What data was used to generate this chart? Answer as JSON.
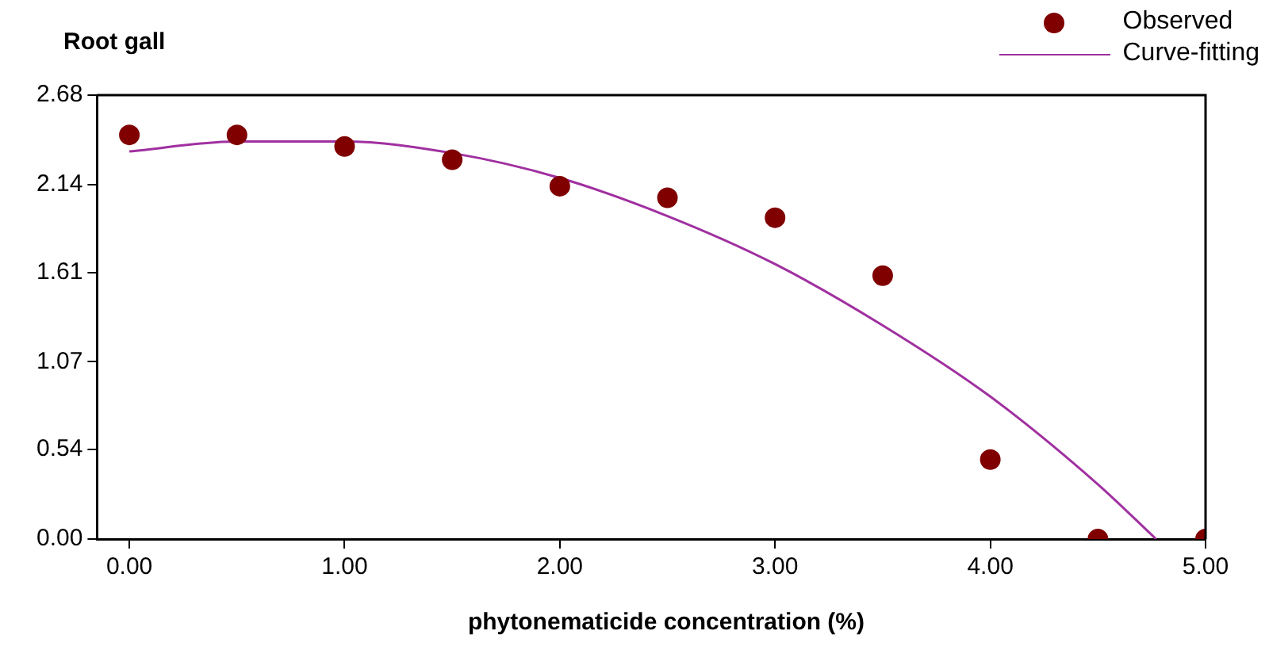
{
  "chart_data": {
    "type": "scatter",
    "ylabel": "Root gall",
    "xlabel": "phytonematicide concentration (%)",
    "xlim": [
      -0.15,
      5
    ],
    "xticks": [
      {
        "value": 0,
        "label": "0.00"
      },
      {
        "value": 1,
        "label": "1.00"
      },
      {
        "value": 2,
        "label": "2.00"
      },
      {
        "value": 3,
        "label": "3.00"
      },
      {
        "value": 4,
        "label": "4.00"
      },
      {
        "value": 5,
        "label": "5.00"
      }
    ],
    "ylim": [
      0,
      2.68
    ],
    "yticks": [
      {
        "value": 0,
        "label": "0.00"
      },
      {
        "value": 0.54,
        "label": "0.54"
      },
      {
        "value": 1.07,
        "label": "1.07"
      },
      {
        "value": 1.61,
        "label": "1.61"
      },
      {
        "value": 2.14,
        "label": "2.14"
      },
      {
        "value": 2.68,
        "label": "2.68"
      }
    ],
    "grid": false,
    "legend": "top right",
    "series": [
      {
        "name": "Observed",
        "marker": "circle",
        "color": "#800000",
        "x": [
          0,
          0.5,
          1,
          1.5,
          2,
          2.5,
          3,
          3.5,
          4,
          4.5,
          5
        ],
        "values": [
          2.44,
          2.44,
          2.37,
          2.29,
          2.13,
          2.06,
          1.94,
          1.59,
          0.48,
          0,
          0
        ]
      },
      {
        "name": "Curve-fitting",
        "type": "line",
        "color": "#a030a0",
        "line_style": "solid",
        "marker": "none",
        "x": [
          0,
          0.5,
          1,
          1.5,
          2,
          2.5,
          3,
          3.5,
          4,
          4.5,
          4.77
        ],
        "values": [
          2.34,
          2.4,
          2.4,
          2.33,
          2.18,
          1.95,
          1.66,
          1.29,
          0.86,
          0.33,
          0
        ]
      }
    ]
  }
}
